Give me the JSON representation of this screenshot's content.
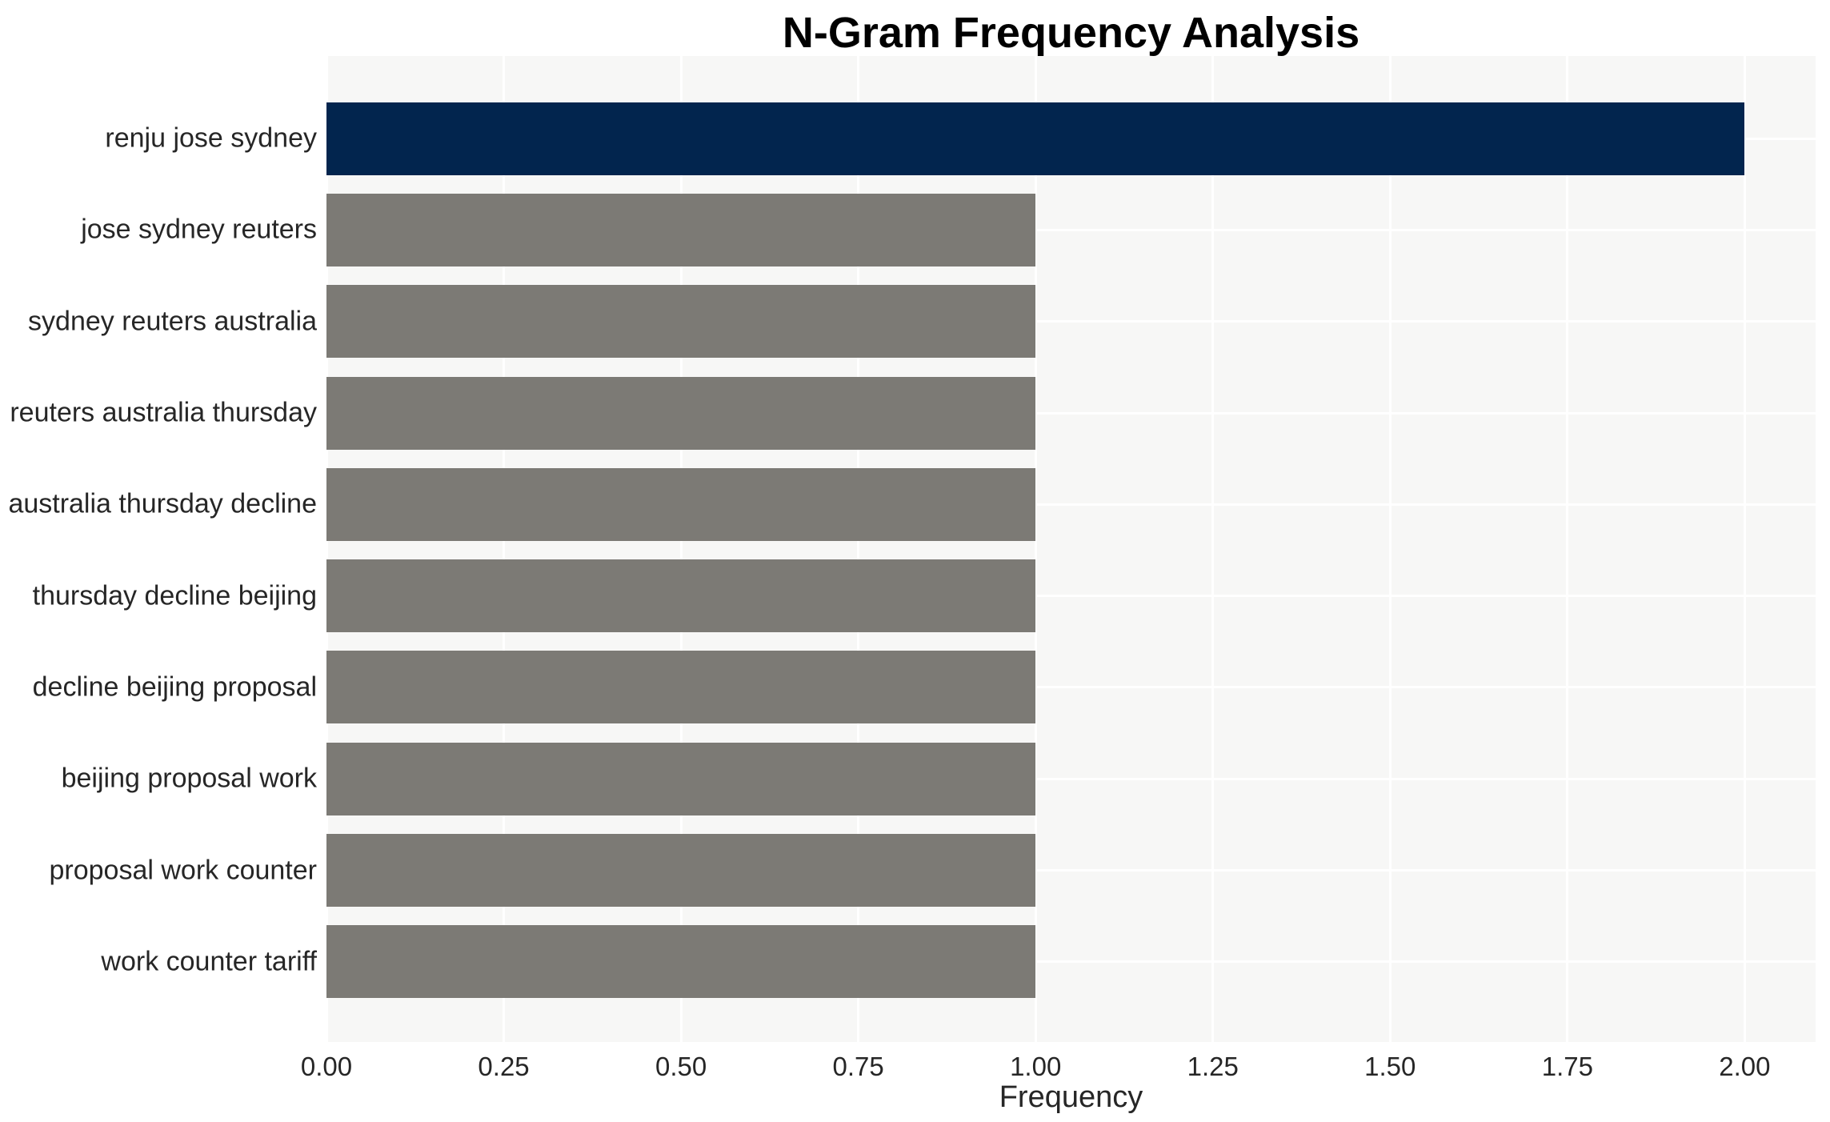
{
  "colors": {
    "highlight_bar": "#02254e",
    "default_bar": "#7c7a75",
    "plot_background": "#f7f7f6",
    "gridline": "#ffffff",
    "tick_text": "#262626",
    "title_text": "#000000"
  },
  "chart_data": {
    "type": "bar",
    "orientation": "horizontal",
    "title": "N-Gram Frequency Analysis",
    "xlabel": "Frequency",
    "ylabel": "",
    "categories": [
      "renju jose sydney",
      "jose sydney reuters",
      "sydney reuters australia",
      "reuters australia thursday",
      "australia thursday decline",
      "thursday decline beijing",
      "decline beijing proposal",
      "beijing proposal work",
      "proposal work counter",
      "work counter tariff"
    ],
    "values": [
      2,
      1,
      1,
      1,
      1,
      1,
      1,
      1,
      1,
      1
    ],
    "bar_colors": [
      "#02254e",
      "#7c7a75",
      "#7c7a75",
      "#7c7a75",
      "#7c7a75",
      "#7c7a75",
      "#7c7a75",
      "#7c7a75",
      "#7c7a75",
      "#7c7a75"
    ],
    "xlim": [
      0,
      2.1
    ],
    "xticks": [
      "0.00",
      "0.25",
      "0.50",
      "0.75",
      "1.00",
      "1.25",
      "1.50",
      "1.75",
      "2.00"
    ],
    "grid": true,
    "legend": false
  }
}
